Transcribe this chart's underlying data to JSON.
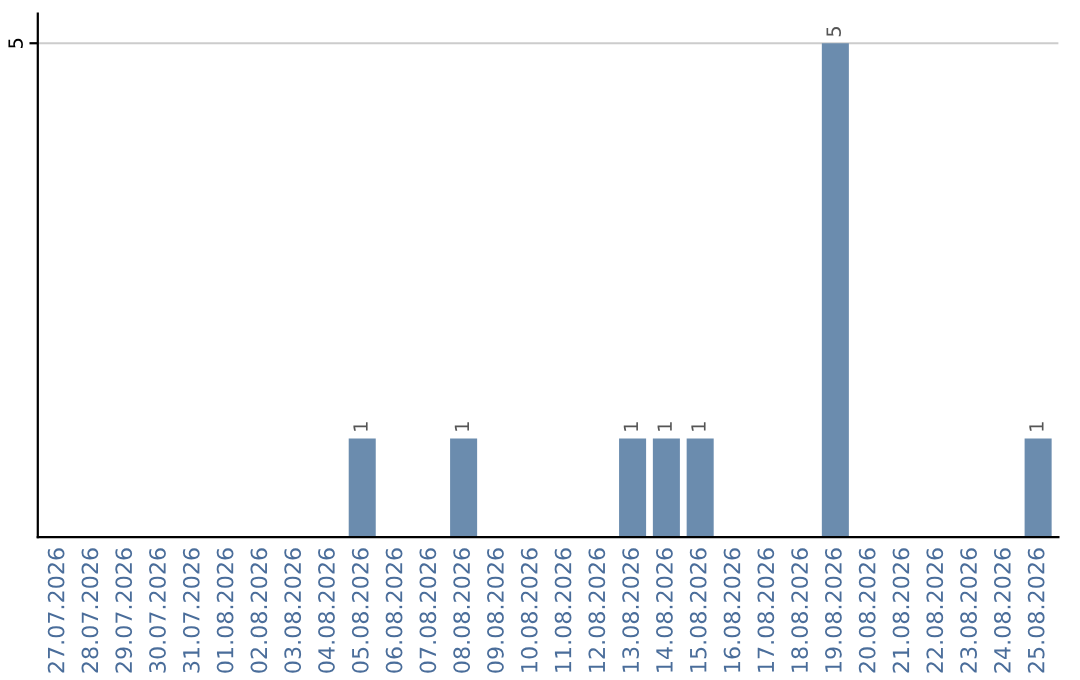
{
  "chart_data": {
    "type": "bar",
    "categories": [
      "27.07.2026",
      "28.07.2026",
      "29.07.2026",
      "30.07.2026",
      "31.07.2026",
      "01.08.2026",
      "02.08.2026",
      "03.08.2026",
      "04.08.2026",
      "05.08.2026",
      "06.08.2026",
      "07.08.2026",
      "08.08.2026",
      "09.08.2026",
      "10.08.2026",
      "11.08.2026",
      "12.08.2026",
      "13.08.2026",
      "14.08.2026",
      "15.08.2026",
      "16.08.2026",
      "17.08.2026",
      "18.08.2026",
      "19.08.2026",
      "20.08.2026",
      "21.08.2026",
      "22.08.2026",
      "23.08.2026",
      "24.08.2026",
      "25.08.2026"
    ],
    "values": [
      0,
      0,
      0,
      0,
      0,
      0,
      0,
      0,
      0,
      1,
      0,
      0,
      1,
      0,
      0,
      0,
      0,
      1,
      1,
      1,
      0,
      0,
      0,
      5,
      0,
      0,
      0,
      0,
      0,
      1
    ],
    "value_labels": [
      null,
      null,
      null,
      null,
      null,
      null,
      null,
      null,
      null,
      "1",
      null,
      null,
      "1",
      null,
      null,
      null,
      null,
      "1",
      "1",
      "1",
      null,
      null,
      null,
      "5",
      null,
      null,
      null,
      null,
      null,
      "1"
    ],
    "color": "#6b8cae",
    "ylim": [
      0,
      5.3
    ],
    "yticks": [
      5
    ],
    "grid": "y"
  }
}
